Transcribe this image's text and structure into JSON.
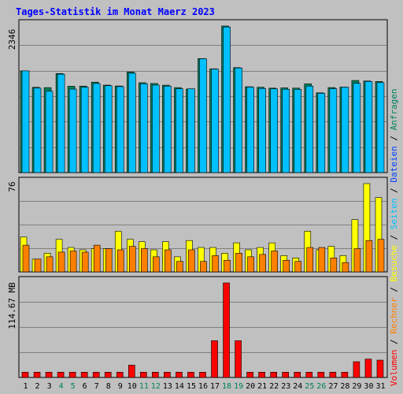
{
  "title": "Tages-Statistik im Monat Maerz 2023",
  "colors": {
    "background": "#c0c0c0",
    "title": "#0000ff",
    "grid": "#808080",
    "anfragen": "#00805c",
    "dateien": "#0040ff",
    "seiten": "#00c0ff",
    "besuche": "#ffff00",
    "rechner": "#ff8000",
    "volumen": "#ff0000",
    "weekend_label": "#00805c",
    "weekday_label": "#000000"
  },
  "right_legend": {
    "anfragen": "Anfragen",
    "dateien": "Dateien",
    "seiten": "Seiten",
    "besuche": "Besuche",
    "rechner": "Rechner",
    "volumen": "Volumen",
    "separator": " / "
  },
  "chart_data": [
    {
      "type": "bar",
      "panel": "top",
      "ymax_label": "2346",
      "ylim": [
        0,
        2346
      ],
      "grid": true,
      "categories": [
        "1",
        "2",
        "3",
        "4",
        "5",
        "6",
        "7",
        "8",
        "9",
        "10",
        "11",
        "12",
        "13",
        "14",
        "15",
        "16",
        "17",
        "18",
        "19",
        "20",
        "21",
        "22",
        "23",
        "24",
        "25",
        "26",
        "27",
        "28",
        "29",
        "30",
        "31"
      ],
      "series": [
        {
          "name": "Anfragen",
          "color": "#00805c",
          "values": [
            1628,
            1365,
            1360,
            1586,
            1382,
            1384,
            1448,
            1400,
            1386,
            1610,
            1438,
            1426,
            1399,
            1360,
            1337,
            1825,
            1660,
            2346,
            1680,
            1374,
            1366,
            1352,
            1356,
            1352,
            1420,
            1277,
            1361,
            1368,
            1475,
            1466,
            1458
          ]
        },
        {
          "name": "Dateien",
          "color": "#00c0ff",
          "values": [
            1628,
            1352,
            1302,
            1574,
            1337,
            1366,
            1425,
            1390,
            1376,
            1590,
            1422,
            1400,
            1383,
            1342,
            1342,
            1822,
            1656,
            2330,
            1674,
            1368,
            1346,
            1340,
            1334,
            1332,
            1384,
            1270,
            1343,
            1367,
            1428,
            1458,
            1440
          ]
        }
      ]
    },
    {
      "type": "bar",
      "panel": "middle",
      "ymax_label": "76",
      "ylim": [
        0,
        76
      ],
      "grid": true,
      "categories": [
        "1",
        "2",
        "3",
        "4",
        "5",
        "6",
        "7",
        "8",
        "9",
        "10",
        "11",
        "12",
        "13",
        "14",
        "15",
        "16",
        "17",
        "18",
        "19",
        "20",
        "21",
        "22",
        "23",
        "24",
        "25",
        "26",
        "27",
        "28",
        "29",
        "30",
        "31"
      ],
      "series": [
        {
          "name": "Besuche",
          "color": "#ffff00",
          "values": [
            30,
            11,
            16,
            28,
            21,
            19,
            20,
            20,
            35,
            28,
            26,
            19,
            26,
            13,
            27,
            21,
            21,
            16,
            25,
            19,
            21,
            25,
            14,
            12,
            35,
            19,
            22,
            14,
            45,
            76,
            64
          ]
        },
        {
          "name": "Rechner",
          "color": "#ff8000",
          "values": [
            23,
            11,
            13,
            17,
            18,
            17,
            23,
            20,
            19,
            22,
            20,
            13,
            19,
            9,
            19,
            9,
            14,
            10,
            16,
            13,
            15,
            18,
            10,
            9,
            21,
            21,
            12,
            8,
            20,
            27,
            28
          ]
        }
      ]
    },
    {
      "type": "bar",
      "panel": "bottom",
      "ymax_label": "114.67 MB",
      "ylim": [
        0,
        114.67
      ],
      "grid": true,
      "categories": [
        "1",
        "2",
        "3",
        "4",
        "5",
        "6",
        "7",
        "8",
        "9",
        "10",
        "11",
        "12",
        "13",
        "14",
        "15",
        "16",
        "17",
        "18",
        "19",
        "20",
        "21",
        "22",
        "23",
        "24",
        "25",
        "26",
        "27",
        "28",
        "29",
        "30",
        "31"
      ],
      "series": [
        {
          "name": "Volumen",
          "color": "#ff0000",
          "values": [
            6.4,
            6.4,
            6.4,
            6.4,
            6.4,
            6.4,
            6.4,
            6.4,
            6.4,
            15.0,
            6.4,
            6.4,
            6.4,
            6.4,
            6.4,
            6.4,
            44.6,
            114.67,
            44.6,
            6.4,
            6.4,
            6.4,
            6.4,
            6.4,
            6.4,
            6.4,
            6.4,
            6.4,
            19.1,
            22.3,
            21.0
          ]
        }
      ]
    }
  ],
  "weekend_days": [
    4,
    5,
    11,
    12,
    18,
    19,
    25,
    26
  ]
}
